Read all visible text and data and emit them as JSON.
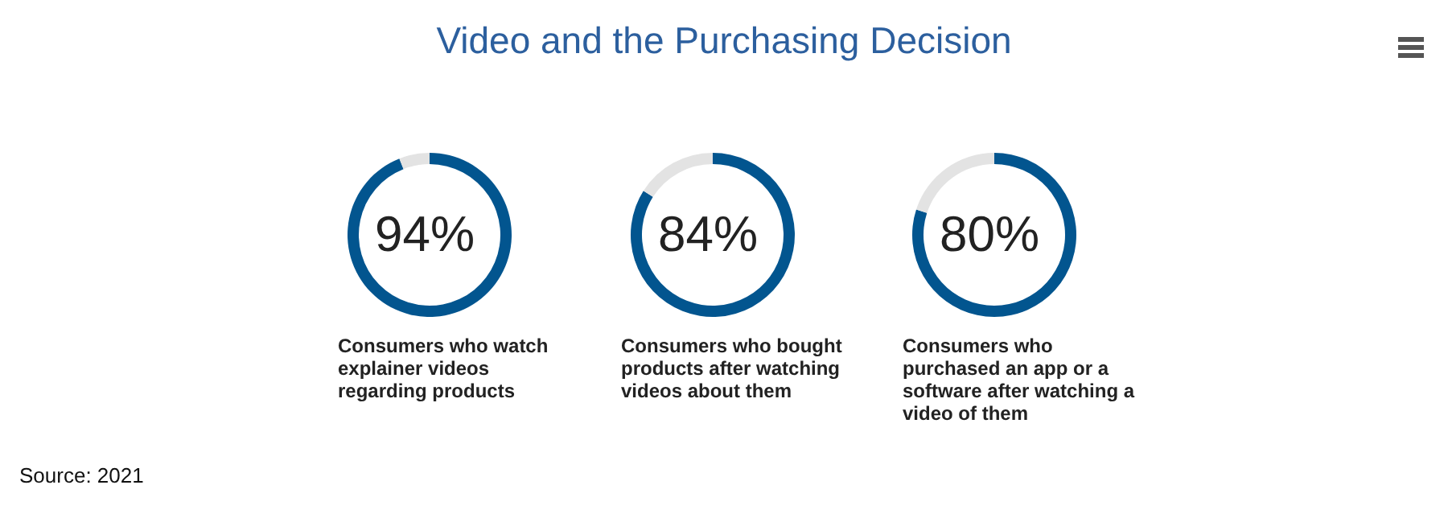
{
  "chart_data": [
    {
      "type": "donut",
      "title": "Video and the Purchasing Decision",
      "categories": [
        "Consumers who watch explainer videos regarding products",
        null
      ],
      "values": [
        94,
        6
      ],
      "colors": [
        "#02558f",
        "#e3e3e3"
      ],
      "value_labels": [
        "94%",
        null
      ],
      "annotations": [
        "Source: 2021"
      ]
    },
    {
      "type": "donut",
      "categories": [
        "Consumers who bought products after watching videos about them",
        null
      ],
      "values": [
        84,
        16
      ],
      "colors": [
        "#02558f",
        "#e3e3e3"
      ],
      "value_labels": [
        "84%",
        null
      ]
    },
    {
      "type": "donut",
      "categories": [
        "Consumers who purchased an app or a software after watching a video of them",
        null
      ],
      "values": [
        80,
        20
      ],
      "colors": [
        "#02558f",
        "#e3e3e3"
      ],
      "value_labels": [
        "80%",
        null
      ]
    }
  ]
}
